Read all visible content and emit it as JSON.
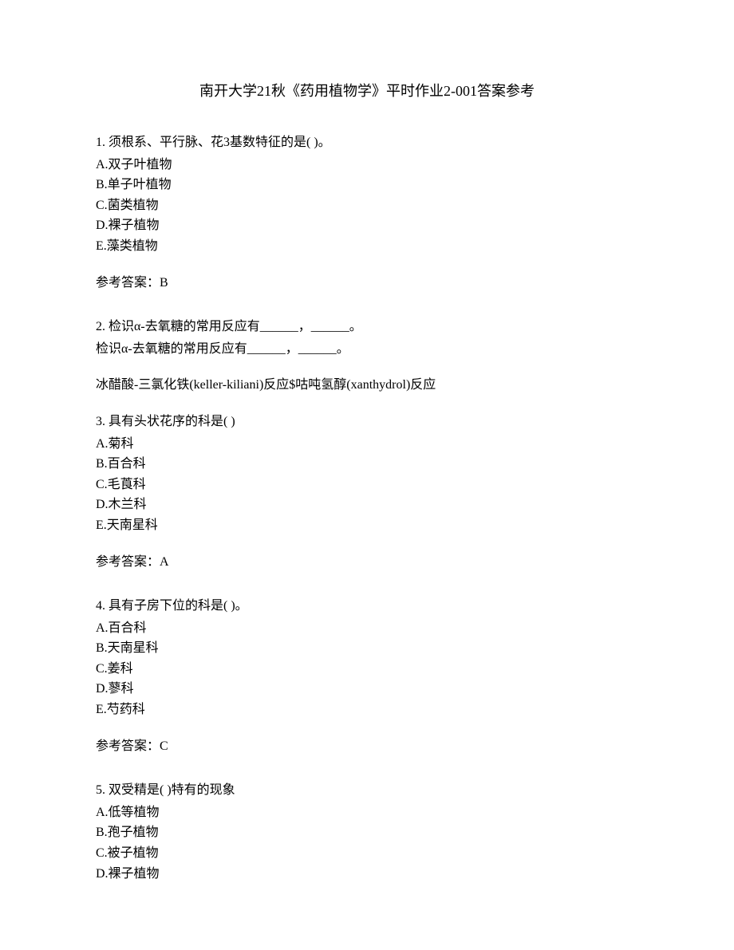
{
  "title": "南开大学21秋《药用植物学》平时作业2-001答案参考",
  "q1": {
    "question": "1. 须根系、平行脉、花3基数特征的是(  )。",
    "optA": "A.双子叶植物",
    "optB": "B.单子叶植物",
    "optC": "C.菌类植物",
    "optD": "D.裸子植物",
    "optE": "E.藻类植物",
    "answer": "参考答案：B"
  },
  "q2": {
    "question": "2. 检识α-去氧糖的常用反应有______，______。",
    "sub": "检识α-去氧糖的常用反应有______，______。",
    "answer": "冰醋酸-三氯化铁(keller-kiliani)反应$咕吨氢醇(xanthydrol)反应"
  },
  "q3": {
    "question": "3. 具有头状花序的科是(  )",
    "optA": "A.菊科",
    "optB": "B.百合科",
    "optC": "C.毛莨科",
    "optD": "D.木兰科",
    "optE": "E.天南星科",
    "answer": "参考答案：A"
  },
  "q4": {
    "question": "4. 具有子房下位的科是(  )。",
    "optA": "A.百合科",
    "optB": "B.天南星科",
    "optC": "C.姜科",
    "optD": "D.蓼科",
    "optE": "E.芍药科",
    "answer": "参考答案：C"
  },
  "q5": {
    "question": "5. 双受精是(  )特有的现象",
    "optA": "A.低等植物",
    "optB": "B.孢子植物",
    "optC": "C.被子植物",
    "optD": "D.裸子植物"
  }
}
